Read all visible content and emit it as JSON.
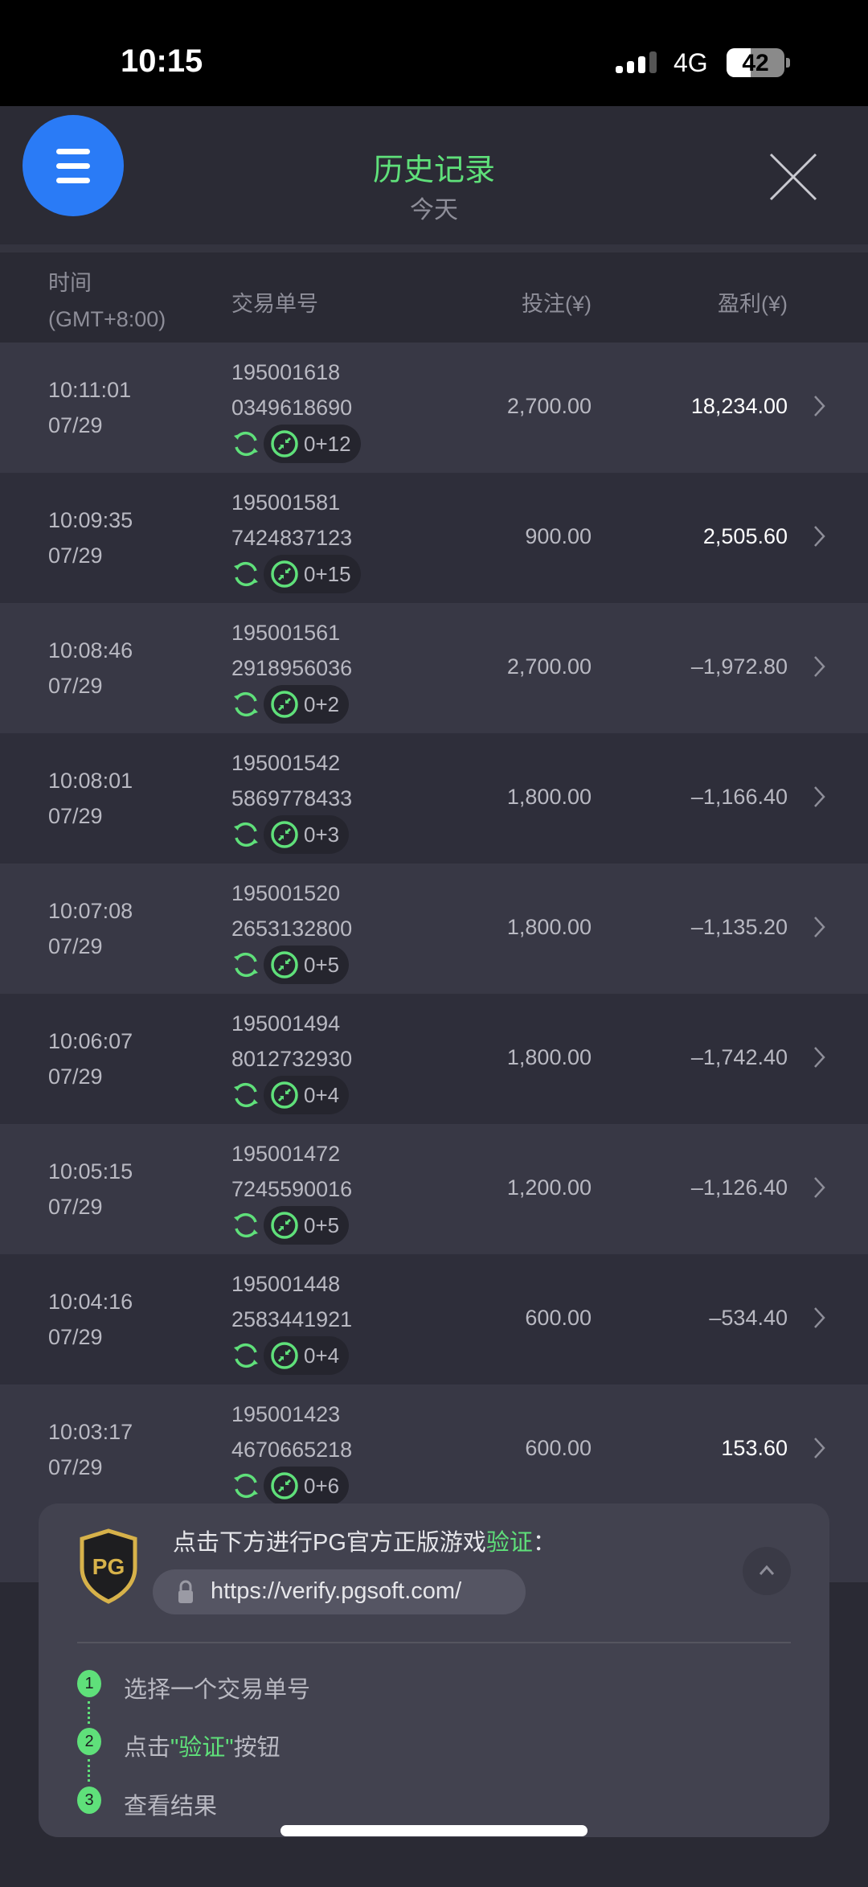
{
  "status_bar": {
    "time": "10:15",
    "network": "4G",
    "battery": "42",
    "battery_level": 0.42
  },
  "header": {
    "title": "历史记录",
    "subtitle": "今天"
  },
  "columns": {
    "time": "时间",
    "timezone": "(GMT+8:00)",
    "id": "交易单号",
    "bet": "投注(¥)",
    "profit": "盈利(¥)"
  },
  "rows": [
    {
      "time": "10:11:01",
      "date": "07/29",
      "id1": "195001618",
      "id2": "0349618690",
      "spins": "0+12",
      "bet": "2,700.00",
      "profit": "18,234.00"
    },
    {
      "time": "10:09:35",
      "date": "07/29",
      "id1": "195001581",
      "id2": "7424837123",
      "spins": "0+15",
      "bet": "900.00",
      "profit": "2,505.60"
    },
    {
      "time": "10:08:46",
      "date": "07/29",
      "id1": "195001561",
      "id2": "2918956036",
      "spins": "0+2",
      "bet": "2,700.00",
      "profit": "–1,972.80"
    },
    {
      "time": "10:08:01",
      "date": "07/29",
      "id1": "195001542",
      "id2": "5869778433",
      "spins": "0+3",
      "bet": "1,800.00",
      "profit": "–1,166.40"
    },
    {
      "time": "10:07:08",
      "date": "07/29",
      "id1": "195001520",
      "id2": "2653132800",
      "spins": "0+5",
      "bet": "1,800.00",
      "profit": "–1,135.20"
    },
    {
      "time": "10:06:07",
      "date": "07/29",
      "id1": "195001494",
      "id2": "8012732930",
      "spins": "0+4",
      "bet": "1,800.00",
      "profit": "–1,742.40"
    },
    {
      "time": "10:05:15",
      "date": "07/29",
      "id1": "195001472",
      "id2": "7245590016",
      "spins": "0+5",
      "bet": "1,200.00",
      "profit": "–1,126.40"
    },
    {
      "time": "10:04:16",
      "date": "07/29",
      "id1": "195001448",
      "id2": "2583441921",
      "spins": "0+4",
      "bet": "600.00",
      "profit": "–534.40"
    },
    {
      "time": "10:03:17",
      "date": "07/29",
      "id1": "195001423",
      "id2": "4670665218",
      "spins": "0+6",
      "bet": "600.00",
      "profit": "153.60"
    }
  ],
  "verify": {
    "text": "点击下方进行PG官方正版游戏",
    "text_highlight": "验证",
    "text_colon": "：",
    "logo": "PG",
    "url": "https://verify.pgsoft.com/",
    "steps": [
      {
        "num": "1",
        "text": "选择一个交易单号"
      },
      {
        "num": "2",
        "pre": "点击",
        "hl": "\"验证\"",
        "post": "按钮"
      },
      {
        "num": "3",
        "text": "查看结果"
      }
    ]
  },
  "colors": {
    "accent_green": "#5fe07a",
    "menu_blue": "#2a7bf6",
    "positive_profit": "#ffffff",
    "negative_profit": "#b9b9c2"
  }
}
